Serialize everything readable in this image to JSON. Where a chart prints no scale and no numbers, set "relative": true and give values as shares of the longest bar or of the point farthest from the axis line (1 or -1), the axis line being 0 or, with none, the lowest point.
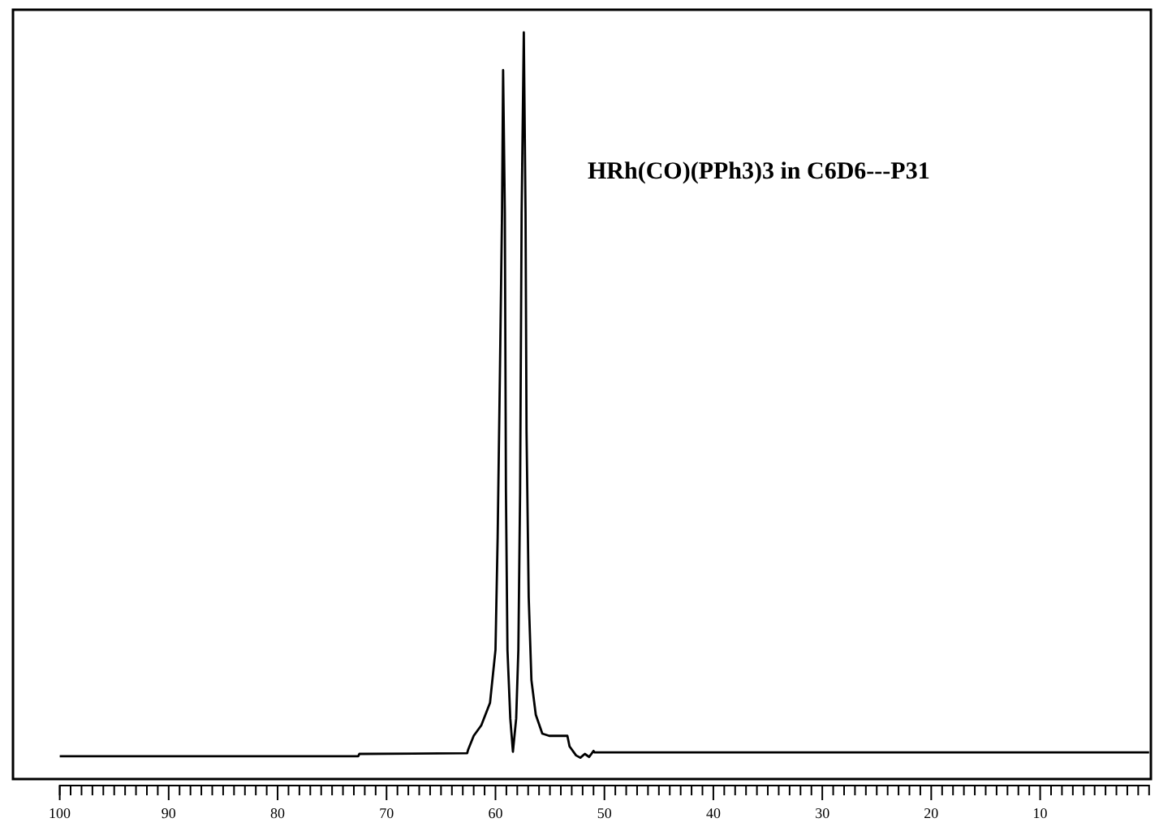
{
  "chart_data": {
    "type": "line",
    "title": "HRh(CO)(PPh3)3 in C6D6---P31",
    "relative": true,
    "xlim": [
      100,
      0
    ],
    "xticks": [
      100,
      {
        "value": 99,
        "label": null
      },
      {
        "value": 98,
        "label": null
      },
      {
        "value": 97,
        "label": null
      },
      {
        "value": 96,
        "label": null
      },
      {
        "value": 95,
        "label": null
      },
      {
        "value": 94,
        "label": null
      },
      {
        "value": 93,
        "label": null
      },
      {
        "value": 92,
        "label": null
      },
      {
        "value": 91,
        "label": null
      },
      90,
      {
        "value": 89,
        "label": null
      },
      {
        "value": 88,
        "label": null
      },
      {
        "value": 87,
        "label": null
      },
      {
        "value": 86,
        "label": null
      },
      {
        "value": 85,
        "label": null
      },
      {
        "value": 84,
        "label": null
      },
      {
        "value": 83,
        "label": null
      },
      {
        "value": 82,
        "label": null
      },
      {
        "value": 81,
        "label": null
      },
      80,
      {
        "value": 79,
        "label": null
      },
      {
        "value": 78,
        "label": null
      },
      {
        "value": 77,
        "label": null
      },
      {
        "value": 76,
        "label": null
      },
      {
        "value": 75,
        "label": null
      },
      {
        "value": 74,
        "label": null
      },
      {
        "value": 73,
        "label": null
      },
      {
        "value": 72,
        "label": null
      },
      {
        "value": 71,
        "label": null
      },
      70,
      {
        "value": 69,
        "label": null
      },
      {
        "value": 68,
        "label": null
      },
      {
        "value": 67,
        "label": null
      },
      {
        "value": 66,
        "label": null
      },
      {
        "value": 65,
        "label": null
      },
      {
        "value": 64,
        "label": null
      },
      {
        "value": 63,
        "label": null
      },
      {
        "value": 62,
        "label": null
      },
      {
        "value": 61,
        "label": null
      },
      60,
      {
        "value": 59,
        "label": null
      },
      {
        "value": 58,
        "label": null
      },
      {
        "value": 57,
        "label": null
      },
      {
        "value": 56,
        "label": null
      },
      {
        "value": 55,
        "label": null
      },
      {
        "value": 54,
        "label": null
      },
      {
        "value": 53,
        "label": null
      },
      {
        "value": 52,
        "label": null
      },
      {
        "value": 51,
        "label": null
      },
      50,
      {
        "value": 49,
        "label": null
      },
      {
        "value": 48,
        "label": null
      },
      {
        "value": 47,
        "label": null
      },
      {
        "value": 46,
        "label": null
      },
      {
        "value": 45,
        "label": null
      },
      {
        "value": 44,
        "label": null
      },
      {
        "value": 43,
        "label": null
      },
      {
        "value": 42,
        "label": null
      },
      {
        "value": 41,
        "label": null
      },
      40,
      {
        "value": 39,
        "label": null
      },
      {
        "value": 38,
        "label": null
      },
      {
        "value": 37,
        "label": null
      },
      {
        "value": 36,
        "label": null
      },
      {
        "value": 35,
        "label": null
      },
      {
        "value": 34,
        "label": null
      },
      {
        "value": 33,
        "label": null
      },
      {
        "value": 32,
        "label": null
      },
      {
        "value": 31,
        "label": null
      },
      30,
      {
        "value": 29,
        "label": null
      },
      {
        "value": 28,
        "label": null
      },
      {
        "value": 27,
        "label": null
      },
      {
        "value": 26,
        "label": null
      },
      {
        "value": 25,
        "label": null
      },
      {
        "value": 24,
        "label": null
      },
      {
        "value": 23,
        "label": null
      },
      {
        "value": 22,
        "label": null
      },
      {
        "value": 21,
        "label": null
      },
      20,
      {
        "value": 19,
        "label": null
      },
      {
        "value": 18,
        "label": null
      },
      {
        "value": 17,
        "label": null
      },
      {
        "value": 16,
        "label": null
      },
      {
        "value": 15,
        "label": null
      },
      {
        "value": 14,
        "label": null
      },
      {
        "value": 13,
        "label": null
      },
      {
        "value": 12,
        "label": null
      },
      {
        "value": 11,
        "label": null
      },
      10,
      {
        "value": 9,
        "label": null
      },
      {
        "value": 8,
        "label": null
      },
      {
        "value": 7,
        "label": null
      },
      {
        "value": 6,
        "label": null
      },
      {
        "value": 5,
        "label": null
      },
      {
        "value": 4,
        "label": null
      },
      {
        "value": 3,
        "label": null
      },
      {
        "value": 2,
        "label": null
      },
      {
        "value": 1,
        "label": null
      }
    ],
    "series": [
      {
        "color": "#000000",
        "x": [
          100,
          72.6,
          72.5,
          62.6,
          62.5,
          62.0,
          61.3,
          60.5,
          60.0,
          59.8,
          59.6,
          59.4,
          59.3,
          59.14,
          59.04,
          58.9,
          58.64,
          58.4,
          58.1,
          57.9,
          57.74,
          57.6,
          57.4,
          57.24,
          57.15,
          56.95,
          56.7,
          56.3,
          55.7,
          55.07,
          53.4,
          53.2,
          52.6,
          52.2,
          51.8,
          51.4,
          51.0,
          50.9,
          0
        ],
        "values": [
          0.039,
          0.039,
          0.042,
          0.043,
          0.048,
          0.066,
          0.08,
          0.11,
          0.18,
          0.33,
          0.54,
          0.76,
          0.95,
          0.76,
          0.39,
          0.18,
          0.089,
          0.045,
          0.089,
          0.18,
          0.39,
          0.76,
          1,
          0.76,
          0.47,
          0.25,
          0.14,
          0.094,
          0.069,
          0.066,
          0.066,
          0.052,
          0.04,
          0.037,
          0.042,
          0.038,
          0.046,
          0.044,
          0.044
        ]
      }
    ]
  }
}
